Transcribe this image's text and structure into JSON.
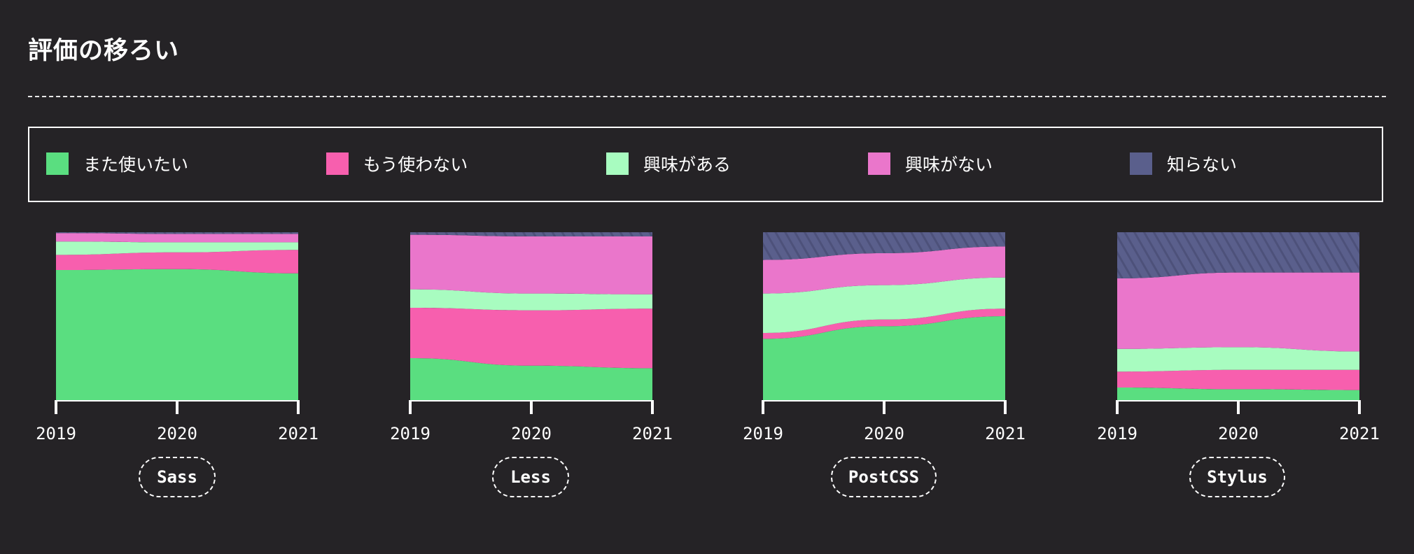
{
  "page": {
    "title": "評価の移ろい"
  },
  "legend": [
    {
      "label": "また使いたい",
      "color": "#5ade80"
    },
    {
      "label": "もう使わない",
      "color": "#f75fae"
    },
    {
      "label": "興味がある",
      "color": "#a8fcc0"
    },
    {
      "label": "興味がない",
      "color": "#ea76cb"
    },
    {
      "label": "知らない",
      "color": "#5a5f8c"
    }
  ],
  "chart_data": [
    {
      "type": "area",
      "name": "Sass",
      "x": [
        "2019",
        "2020",
        "2021"
      ],
      "ylim": [
        0,
        100
      ],
      "series": [
        {
          "name": "また使いたい",
          "values": [
            77.5,
            78.0,
            75.5
          ]
        },
        {
          "name": "もう使わない",
          "values": [
            9.0,
            10.0,
            14.0
          ]
        },
        {
          "name": "興味がある",
          "values": [
            8.0,
            6.0,
            4.5
          ]
        },
        {
          "name": "興味がない",
          "values": [
            5.0,
            5.0,
            5.0
          ]
        },
        {
          "name": "知らない",
          "values": [
            0.5,
            1.0,
            1.0
          ]
        }
      ]
    },
    {
      "type": "area",
      "name": "Less",
      "x": [
        "2019",
        "2020",
        "2021"
      ],
      "ylim": [
        0,
        100
      ],
      "series": [
        {
          "name": "また使いたい",
          "values": [
            25.0,
            20.5,
            19.0
          ]
        },
        {
          "name": "もう使わない",
          "values": [
            30.0,
            33.0,
            35.5
          ]
        },
        {
          "name": "興味がある",
          "values": [
            11.0,
            10.0,
            8.5
          ]
        },
        {
          "name": "興味がない",
          "values": [
            32.5,
            34.0,
            34.5
          ]
        },
        {
          "name": "知らない",
          "values": [
            1.5,
            2.5,
            2.5
          ]
        }
      ]
    },
    {
      "type": "area",
      "name": "PostCSS",
      "x": [
        "2019",
        "2020",
        "2021"
      ],
      "ylim": [
        0,
        100
      ],
      "series": [
        {
          "name": "また使いたい",
          "values": [
            36.5,
            44.0,
            50.0
          ]
        },
        {
          "name": "もう使わない",
          "values": [
            3.5,
            4.0,
            4.5
          ]
        },
        {
          "name": "興味がある",
          "values": [
            23.5,
            20.5,
            18.5
          ]
        },
        {
          "name": "興味がない",
          "values": [
            20.0,
            19.0,
            18.5
          ]
        },
        {
          "name": "知らない",
          "values": [
            16.5,
            12.5,
            8.5
          ]
        }
      ]
    },
    {
      "type": "area",
      "name": "Stylus",
      "x": [
        "2019",
        "2020",
        "2021"
      ],
      "ylim": [
        0,
        100
      ],
      "series": [
        {
          "name": "また使いたい",
          "values": [
            7.5,
            6.5,
            6.0
          ]
        },
        {
          "name": "もう使わない",
          "values": [
            9.5,
            11.5,
            12.0
          ]
        },
        {
          "name": "興味がある",
          "values": [
            13.5,
            13.5,
            11.0
          ]
        },
        {
          "name": "興味がない",
          "values": [
            42.0,
            44.5,
            47.0
          ]
        },
        {
          "name": "知らない",
          "values": [
            27.5,
            24.0,
            24.0
          ]
        }
      ]
    }
  ]
}
